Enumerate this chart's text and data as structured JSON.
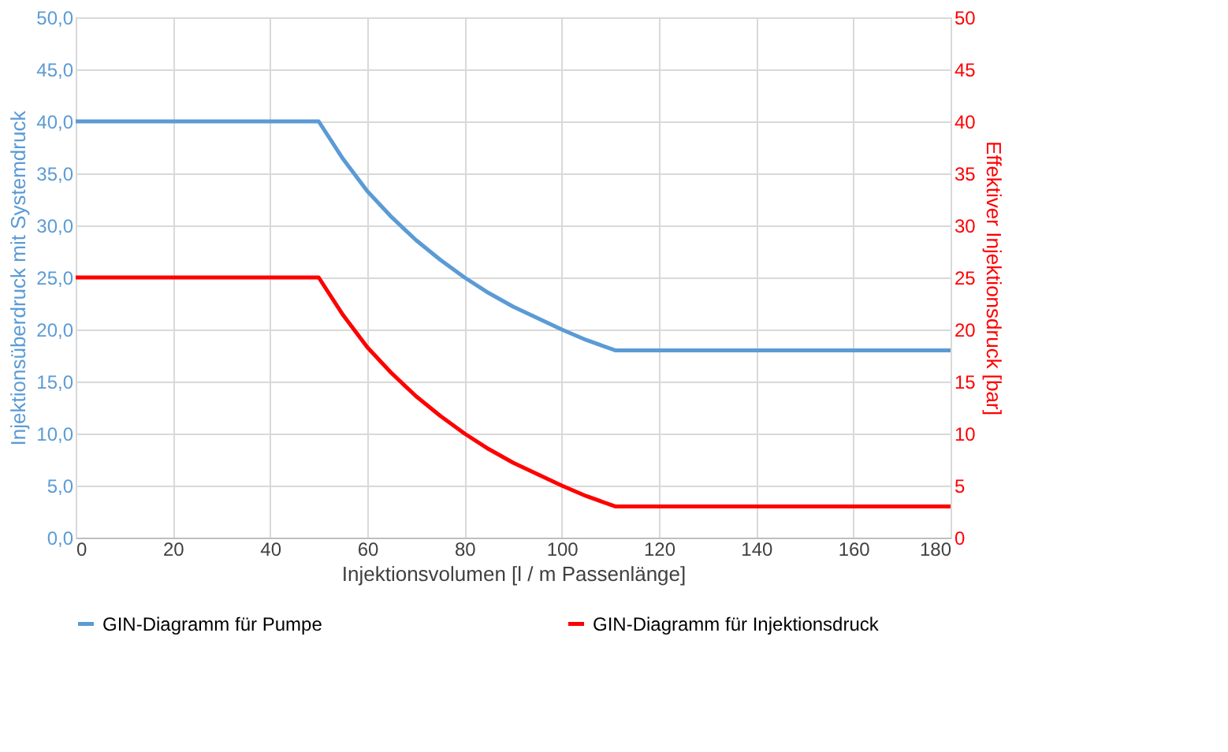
{
  "chart_data": {
    "type": "line",
    "xlabel": "Injektionsvolumen [l / m Passenlänge]",
    "ylabel": "Injektionsüberdruck mit Systemdruck",
    "y2label": "Effektiver Injektionsdruck [bar]",
    "series": [
      {
        "name": "GIN-Diagramm für Pumpe",
        "color": "#5b9bd5",
        "x": [
          0,
          50,
          55,
          60,
          65,
          70,
          75,
          80,
          85,
          90,
          95,
          100,
          105,
          111,
          180
        ],
        "values": [
          40,
          40,
          36.4,
          33.3,
          30.8,
          28.6,
          26.7,
          25,
          23.5,
          22.2,
          21.1,
          20,
          19,
          18,
          18
        ]
      },
      {
        "name": "GIN-Diagramm für Injektionsdruck",
        "color": "#ff0000",
        "axis": "y2",
        "x": [
          0,
          50,
          55,
          60,
          65,
          70,
          75,
          80,
          85,
          90,
          95,
          100,
          105,
          111,
          180
        ],
        "values": [
          25,
          25,
          21.4,
          18.3,
          15.8,
          13.6,
          11.7,
          10,
          8.5,
          7.2,
          6.1,
          5,
          4,
          3,
          3
        ]
      }
    ],
    "xlim": [
      0,
      180
    ],
    "xticks": [
      0,
      20,
      40,
      60,
      80,
      100,
      120,
      140,
      160,
      180
    ],
    "ylim": [
      0,
      50
    ],
    "yticks": [
      {
        "value": 0,
        "label": "0,0"
      },
      {
        "value": 5,
        "label": "5,0"
      },
      {
        "value": 10,
        "label": "10,0"
      },
      {
        "value": 15,
        "label": "15,0"
      },
      {
        "value": 20,
        "label": "20,0"
      },
      {
        "value": 25,
        "label": "25,0"
      },
      {
        "value": 30,
        "label": "30,0"
      },
      {
        "value": 35,
        "label": "35,0"
      },
      {
        "value": 40,
        "label": "40,0"
      },
      {
        "value": 45,
        "label": "45,0"
      },
      {
        "value": 50,
        "label": "50,0"
      }
    ],
    "y2lim": [
      0,
      50
    ],
    "y2ticks": [
      0,
      5,
      10,
      15,
      20,
      25,
      30,
      35,
      40,
      45,
      50
    ],
    "grid": true,
    "legend": "bottom",
    "marker": "none",
    "line_style": "solid"
  }
}
